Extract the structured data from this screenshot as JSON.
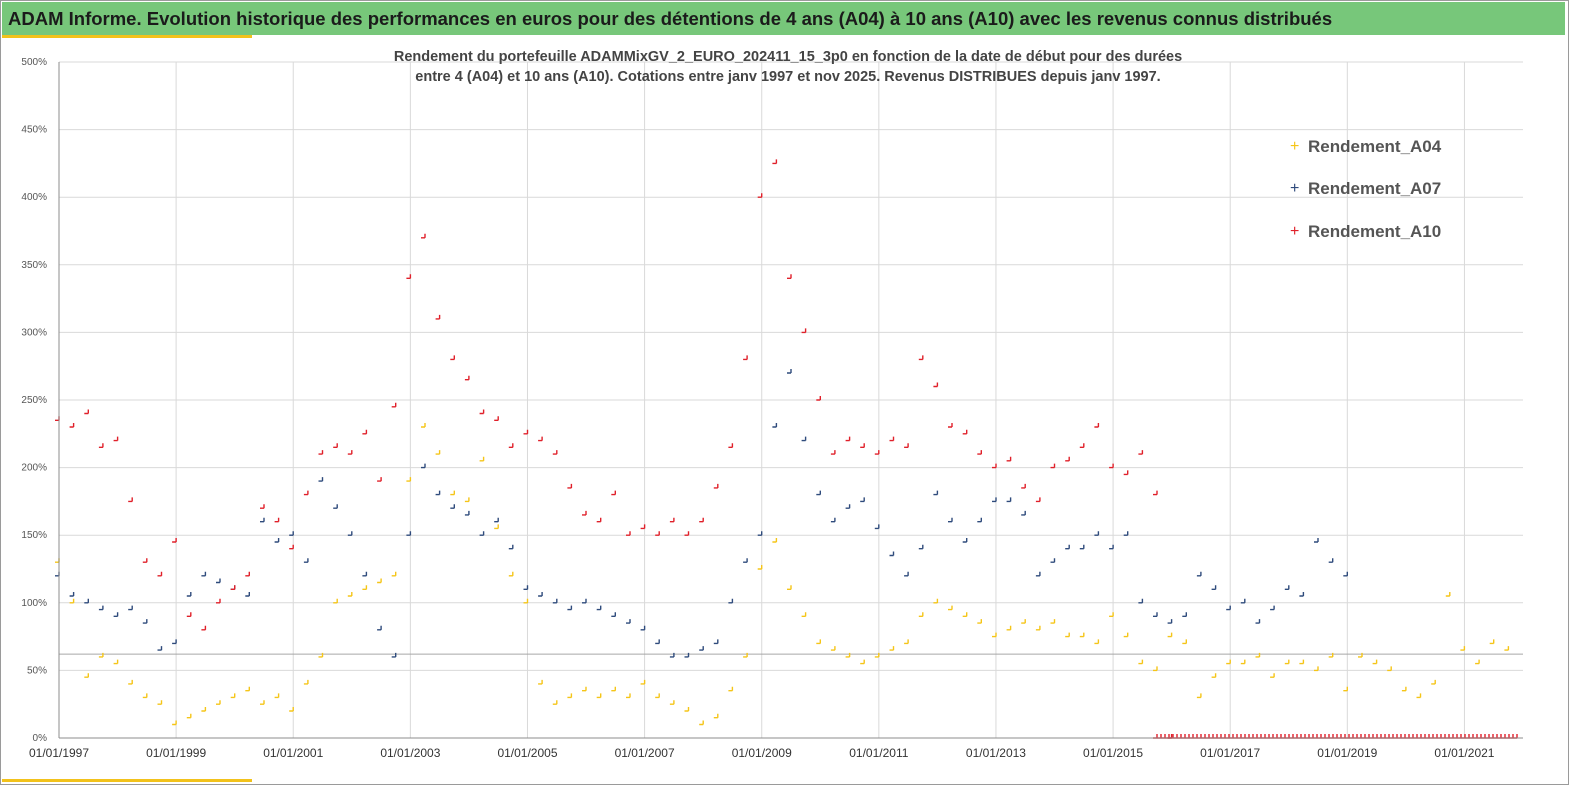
{
  "banner": {
    "title": "ADAM Informe. Evolution historique des performances en euros pour des détentions de 4 ans (A04) à 10 ans (A10) avec les revenus connus distribués"
  },
  "colors": {
    "banner": "#77c77a",
    "accent": "#f2c21b",
    "A04": "#f5c518",
    "A07": "#2f4b7c",
    "A10": "#e0202a"
  },
  "chart_data": {
    "type": "scatter",
    "title_line1": "Rendement du portefeuille ADAMMixGV_2_EURO_202411_15_3p0 en fonction de la date de début pour des durées",
    "title_line2": "entre 4 (A04) et 10 ans (A10). Cotations entre janv 1997 et nov 2025. Revenus DISTRIBUES depuis janv 1997.",
    "xlabel": "",
    "ylabel": "",
    "x_tick_labels": [
      "01/01/1997",
      "01/01/1999",
      "01/01/2001",
      "01/01/2003",
      "01/01/2005",
      "01/01/2007",
      "01/01/2009",
      "01/01/2011",
      "01/01/2013",
      "01/01/2015",
      "01/01/2017",
      "01/01/2019",
      "01/01/2021"
    ],
    "y_tick_labels": [
      "0%",
      "50%",
      "100%",
      "150%",
      "200%",
      "250%",
      "300%",
      "350%",
      "400%",
      "450%",
      "500%"
    ],
    "xlim": [
      "1997-01-01",
      "2022-01-01"
    ],
    "ylim": [
      0,
      500
    ],
    "grid": true,
    "legend_position": "top-right",
    "reference_line_y": 62,
    "series": [
      {
        "name": "Rendement_A04",
        "marker": "+",
        "x": [
          "1997-01",
          "1997-04",
          "1997-07",
          "1997-10",
          "1998-01",
          "1998-04",
          "1998-07",
          "1998-10",
          "1999-01",
          "1999-04",
          "1999-07",
          "1999-10",
          "2000-01",
          "2000-04",
          "2000-07",
          "2000-10",
          "2001-01",
          "2001-04",
          "2001-07",
          "2001-10",
          "2002-01",
          "2002-04",
          "2002-07",
          "2002-10",
          "2003-01",
          "2003-04",
          "2003-07",
          "2003-10",
          "2004-01",
          "2004-04",
          "2004-07",
          "2004-10",
          "2005-01",
          "2005-04",
          "2005-07",
          "2005-10",
          "2006-01",
          "2006-04",
          "2006-07",
          "2006-10",
          "2007-01",
          "2007-04",
          "2007-07",
          "2007-10",
          "2008-01",
          "2008-04",
          "2008-07",
          "2008-10",
          "2009-01",
          "2009-04",
          "2009-07",
          "2009-10",
          "2010-01",
          "2010-04",
          "2010-07",
          "2010-10",
          "2011-01",
          "2011-04",
          "2011-07",
          "2011-10",
          "2012-01",
          "2012-04",
          "2012-07",
          "2012-10",
          "2013-01",
          "2013-04",
          "2013-07",
          "2013-10",
          "2014-01",
          "2014-04",
          "2014-07",
          "2014-10",
          "2015-01",
          "2015-04",
          "2015-07",
          "2015-10",
          "2016-01",
          "2016-04",
          "2016-07",
          "2016-10",
          "2017-01",
          "2017-04",
          "2017-07",
          "2017-10",
          "2018-01",
          "2018-04",
          "2018-07",
          "2018-10",
          "2019-01",
          "2019-04",
          "2019-07",
          "2019-10",
          "2020-01",
          "2020-04",
          "2020-07",
          "2020-10",
          "2021-01",
          "2021-04",
          "2021-07",
          "2021-10"
        ],
        "y": [
          130,
          100,
          45,
          60,
          55,
          40,
          30,
          25,
          10,
          15,
          20,
          25,
          30,
          35,
          25,
          30,
          20,
          40,
          60,
          100,
          105,
          110,
          115,
          120,
          190,
          230,
          210,
          180,
          175,
          205,
          155,
          120,
          100,
          40,
          25,
          30,
          35,
          30,
          35,
          30,
          40,
          30,
          25,
          20,
          10,
          15,
          35,
          60,
          125,
          145,
          110,
          90,
          70,
          65,
          60,
          55,
          60,
          65,
          70,
          90,
          100,
          95,
          90,
          85,
          75,
          80,
          85,
          80,
          85,
          75,
          75,
          70,
          90,
          75,
          55,
          50,
          75,
          70,
          30,
          45,
          55,
          55,
          60,
          45,
          55,
          55,
          50,
          60,
          35,
          60,
          55,
          50,
          35,
          30,
          40,
          105,
          65,
          55,
          70,
          65
        ]
      },
      {
        "name": "Rendement_A07",
        "marker": "+",
        "x": [
          "1997-01",
          "1997-04",
          "1997-07",
          "1997-10",
          "1998-01",
          "1998-04",
          "1998-07",
          "1998-10",
          "1999-01",
          "1999-04",
          "1999-07",
          "1999-10",
          "2000-01",
          "2000-04",
          "2000-07",
          "2000-10",
          "2001-01",
          "2001-04",
          "2001-07",
          "2001-10",
          "2002-01",
          "2002-04",
          "2002-07",
          "2002-10",
          "2003-01",
          "2003-04",
          "2003-07",
          "2003-10",
          "2004-01",
          "2004-04",
          "2004-07",
          "2004-10",
          "2005-01",
          "2005-04",
          "2005-07",
          "2005-10",
          "2006-01",
          "2006-04",
          "2006-07",
          "2006-10",
          "2007-01",
          "2007-04",
          "2007-07",
          "2007-10",
          "2008-01",
          "2008-04",
          "2008-07",
          "2008-10",
          "2009-01",
          "2009-04",
          "2009-07",
          "2009-10",
          "2010-01",
          "2010-04",
          "2010-07",
          "2010-10",
          "2011-01",
          "2011-04",
          "2011-07",
          "2011-10",
          "2012-01",
          "2012-04",
          "2012-07",
          "2012-10",
          "2013-01",
          "2013-04",
          "2013-07",
          "2013-10",
          "2014-01",
          "2014-04",
          "2014-07",
          "2014-10",
          "2015-01",
          "2015-04",
          "2015-07",
          "2015-10",
          "2016-01",
          "2016-04",
          "2016-07",
          "2016-10",
          "2017-01",
          "2017-04",
          "2017-07",
          "2017-10",
          "2018-01",
          "2018-04",
          "2018-07",
          "2018-10",
          "2019-01"
        ],
        "y": [
          120,
          105,
          100,
          95,
          90,
          95,
          85,
          65,
          70,
          105,
          120,
          115,
          110,
          105,
          160,
          145,
          150,
          130,
          190,
          170,
          150,
          120,
          80,
          60,
          150,
          200,
          180,
          170,
          165,
          150,
          160,
          140,
          110,
          105,
          100,
          95,
          100,
          95,
          90,
          85,
          80,
          70,
          60,
          60,
          65,
          70,
          100,
          130,
          150,
          230,
          270,
          220,
          180,
          160,
          170,
          175,
          155,
          135,
          120,
          140,
          180,
          160,
          145,
          160,
          175,
          175,
          165,
          120,
          130,
          140,
          140,
          150,
          140,
          150,
          100,
          90,
          85,
          90,
          120,
          110,
          95,
          100,
          85,
          95,
          110,
          105,
          145,
          130,
          120
        ]
      },
      {
        "name": "Rendement_A10",
        "marker": "+",
        "x": [
          "1997-01",
          "1997-04",
          "1997-07",
          "1997-10",
          "1998-01",
          "1998-04",
          "1998-07",
          "1998-10",
          "1999-01",
          "1999-04",
          "1999-07",
          "1999-10",
          "2000-01",
          "2000-04",
          "2000-07",
          "2000-10",
          "2001-01",
          "2001-04",
          "2001-07",
          "2001-10",
          "2002-01",
          "2002-04",
          "2002-07",
          "2002-10",
          "2003-01",
          "2003-04",
          "2003-07",
          "2003-10",
          "2004-01",
          "2004-04",
          "2004-07",
          "2004-10",
          "2005-01",
          "2005-04",
          "2005-07",
          "2005-10",
          "2006-01",
          "2006-04",
          "2006-07",
          "2006-10",
          "2007-01",
          "2007-04",
          "2007-07",
          "2007-10",
          "2008-01",
          "2008-04",
          "2008-07",
          "2008-10",
          "2009-01",
          "2009-04",
          "2009-07",
          "2009-10",
          "2010-01",
          "2010-04",
          "2010-07",
          "2010-10",
          "2011-01",
          "2011-04",
          "2011-07",
          "2011-10",
          "2012-01",
          "2012-04",
          "2012-07",
          "2012-10",
          "2013-01",
          "2013-04",
          "2013-07",
          "2013-10",
          "2014-01",
          "2014-04",
          "2014-07",
          "2014-10",
          "2015-01",
          "2015-04",
          "2015-07",
          "2015-10",
          "2016-01"
        ],
        "y": [
          235,
          230,
          240,
          215,
          220,
          175,
          130,
          120,
          145,
          90,
          80,
          100,
          110,
          120,
          170,
          160,
          140,
          180,
          210,
          215,
          210,
          225,
          190,
          245,
          340,
          370,
          310,
          280,
          265,
          240,
          235,
          215,
          225,
          220,
          210,
          185,
          165,
          160,
          180,
          150,
          155,
          150,
          160,
          150,
          160,
          185,
          215,
          280,
          400,
          425,
          340,
          300,
          250,
          210,
          220,
          215,
          210,
          220,
          215,
          280,
          260,
          230,
          225,
          210,
          200,
          205,
          185,
          175,
          200,
          205,
          215,
          230,
          200,
          195,
          210,
          180,
          0
        ]
      }
    ],
    "zero_band": {
      "series": "Rendement_A10",
      "x_start": "2015-10",
      "x_end": "2021-12",
      "y": 0
    }
  }
}
